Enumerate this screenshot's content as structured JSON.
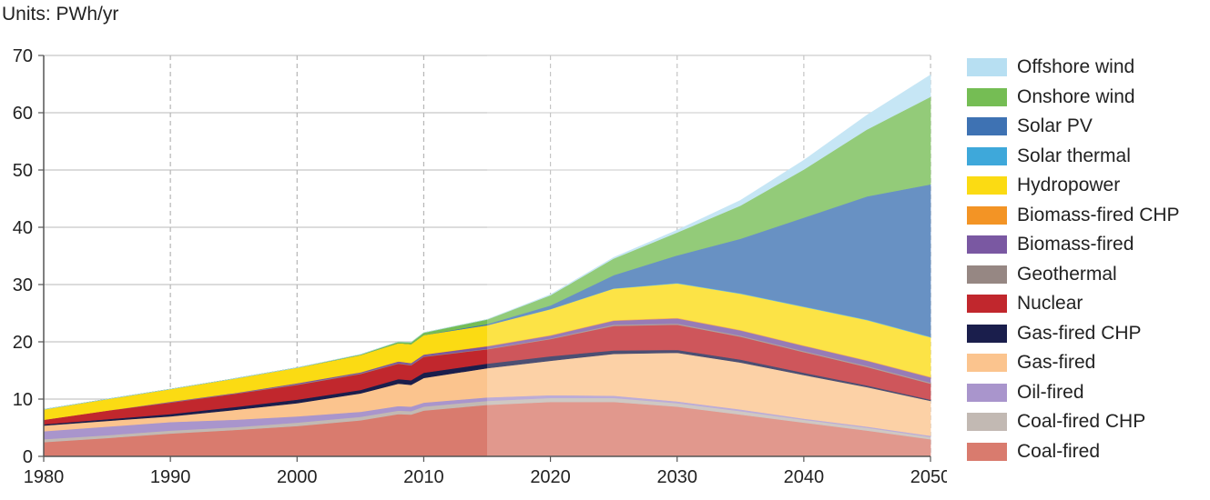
{
  "units_label": "Units: PWh/yr",
  "chart_data": {
    "type": "area",
    "stacked": true,
    "ylim": [
      0,
      70
    ],
    "xlim": [
      1980,
      2050
    ],
    "x_ticks": [
      1980,
      1990,
      2000,
      2010,
      2020,
      2030,
      2040,
      2050
    ],
    "y_ticks": [
      0,
      10,
      20,
      30,
      40,
      50,
      60,
      70
    ],
    "grid": {
      "x": "dashed",
      "y": "solid"
    },
    "historical_end": 2015,
    "legend_position": "right",
    "x": [
      1980,
      1985,
      1990,
      1995,
      2000,
      2005,
      2008,
      2009,
      2010,
      2015,
      2020,
      2025,
      2030,
      2035,
      2040,
      2045,
      2050
    ],
    "series": [
      {
        "name": "Coal-fired",
        "color": "#D97B6E",
        "values": [
          2.5,
          3.2,
          4.0,
          4.6,
          5.3,
          6.3,
          7.4,
          7.3,
          8.0,
          9.0,
          9.5,
          9.5,
          8.7,
          7.3,
          5.9,
          4.5,
          3.0
        ]
      },
      {
        "name": "Coal-fired CHP",
        "color": "#C2B9B3",
        "values": [
          0.5,
          0.5,
          0.5,
          0.5,
          0.6,
          0.6,
          0.6,
          0.6,
          0.7,
          0.7,
          0.7,
          0.7,
          0.6,
          0.6,
          0.5,
          0.5,
          0.4
        ]
      },
      {
        "name": "Oil-fired",
        "color": "#A995CC",
        "values": [
          1.4,
          1.5,
          1.5,
          1.3,
          1.1,
          0.9,
          0.8,
          0.8,
          0.7,
          0.6,
          0.5,
          0.4,
          0.3,
          0.3,
          0.2,
          0.2,
          0.2
        ]
      },
      {
        "name": "Gas-fired",
        "color": "#FBC48E",
        "values": [
          1.0,
          1.0,
          1.0,
          1.7,
          2.3,
          3.2,
          3.9,
          3.8,
          4.3,
          5.1,
          6.0,
          7.3,
          8.5,
          8.2,
          7.6,
          6.9,
          6.1
        ]
      },
      {
        "name": "Gas-fired CHP",
        "color": "#1A1E4C",
        "values": [
          0.2,
          0.3,
          0.4,
          0.5,
          0.6,
          0.6,
          0.8,
          0.8,
          0.9,
          0.8,
          0.8,
          0.6,
          0.5,
          0.5,
          0.4,
          0.3,
          0.2
        ]
      },
      {
        "name": "Nuclear",
        "color": "#C1272D",
        "values": [
          0.8,
          1.5,
          2.0,
          2.3,
          2.6,
          2.8,
          2.7,
          2.6,
          2.8,
          2.5,
          3.0,
          4.3,
          4.4,
          4.0,
          3.6,
          3.2,
          2.8
        ]
      },
      {
        "name": "Geothermal",
        "color": "#968783",
        "values": [
          0.0,
          0.0,
          0.05,
          0.05,
          0.1,
          0.1,
          0.1,
          0.1,
          0.1,
          0.1,
          0.1,
          0.2,
          0.2,
          0.2,
          0.2,
          0.2,
          0.2
        ]
      },
      {
        "name": "Biomass-fired",
        "color": "#7A58A2",
        "values": [
          0.0,
          0.0,
          0.1,
          0.1,
          0.2,
          0.2,
          0.3,
          0.3,
          0.3,
          0.4,
          0.5,
          0.7,
          0.9,
          0.9,
          0.9,
          0.9,
          0.9
        ]
      },
      {
        "name": "Biomass-fired CHP",
        "color": "#F39425",
        "values": [
          0.0,
          0.0,
          0.0,
          0.0,
          0.0,
          0.0,
          0.0,
          0.0,
          0.0,
          0.1,
          0.1,
          0.1,
          0.1,
          0.1,
          0.1,
          0.1,
          0.1
        ]
      },
      {
        "name": "Hydropower",
        "color": "#FBDB13",
        "values": [
          1.8,
          2.0,
          2.2,
          2.5,
          2.7,
          3.0,
          3.2,
          3.3,
          3.4,
          3.6,
          4.5,
          5.5,
          6.0,
          6.3,
          6.7,
          7.0,
          6.9
        ]
      },
      {
        "name": "Solar thermal",
        "color": "#3EA8DA",
        "values": [
          0.0,
          0.0,
          0.0,
          0.0,
          0.0,
          0.0,
          0.0,
          0.0,
          0.0,
          0.0,
          0.05,
          0.05,
          0.1,
          0.1,
          0.1,
          0.1,
          0.1
        ]
      },
      {
        "name": "Solar PV",
        "color": "#3E72B3",
        "values": [
          0.0,
          0.0,
          0.0,
          0.0,
          0.0,
          0.0,
          0.0,
          0.0,
          0.0,
          0.2,
          0.6,
          2.3,
          4.8,
          9.5,
          15.5,
          21.5,
          26.6
        ]
      },
      {
        "name": "Onshore wind",
        "color": "#75BD54",
        "values": [
          0.0,
          0.0,
          0.0,
          0.0,
          0.0,
          0.1,
          0.2,
          0.3,
          0.4,
          0.8,
          1.8,
          2.9,
          4.0,
          5.8,
          8.4,
          11.7,
          15.3
        ]
      },
      {
        "name": "Offshore wind",
        "color": "#B7DFF2",
        "values": [
          0.0,
          0.0,
          0.0,
          0.0,
          0.0,
          0.0,
          0.0,
          0.0,
          0.0,
          0.0,
          0.1,
          0.2,
          0.4,
          0.9,
          1.6,
          2.5,
          3.8
        ]
      }
    ]
  }
}
